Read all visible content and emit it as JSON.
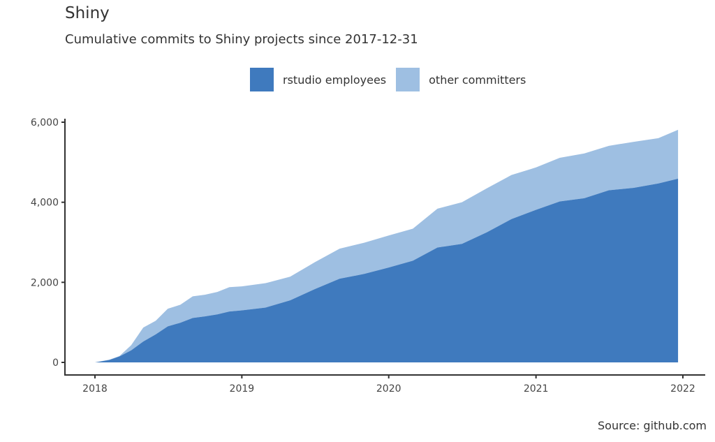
{
  "chart_data": {
    "type": "area",
    "stacked": true,
    "title": "Shiny",
    "subtitle": "Cumulative commits to Shiny projects since 2017-12-31",
    "caption": "Source: github.com",
    "xlabel": "",
    "ylabel": "",
    "xlim": [
      "2017-10-15",
      "2022-03-01"
    ],
    "ylim": [
      -250,
      6050
    ],
    "x_ticks": [
      "2018",
      "2019",
      "2020",
      "2021",
      "2022"
    ],
    "y_ticks": [
      "0",
      "2,000",
      "4,000",
      "6,000"
    ],
    "y_tick_values": [
      0,
      2000,
      4000,
      6000
    ],
    "legend_position": "top",
    "grid": false,
    "x": [
      "2018-01-01",
      "2018-02-06",
      "2018-03-03",
      "2018-04-01",
      "2018-05-01",
      "2018-06-01",
      "2018-07-01",
      "2018-08-01",
      "2018-09-01",
      "2018-10-01",
      "2018-11-01",
      "2018-12-01",
      "2019-01-01",
      "2019-03-01",
      "2019-05-01",
      "2019-07-01",
      "2019-09-01",
      "2019-11-01",
      "2020-01-01",
      "2020-03-01",
      "2020-05-01",
      "2020-07-01",
      "2020-09-01",
      "2020-11-01",
      "2021-01-01",
      "2021-03-01",
      "2021-05-01",
      "2021-07-01",
      "2021-09-01",
      "2021-11-01",
      "2021-12-20"
    ],
    "series": [
      {
        "name": "rstudio employees",
        "color": "#3f7abe",
        "values": [
          0,
          60,
          150,
          300,
          520,
          700,
          900,
          990,
          1110,
          1150,
          1200,
          1270,
          1300,
          1370,
          1550,
          1830,
          2090,
          2210,
          2370,
          2540,
          2870,
          2960,
          3250,
          3580,
          3810,
          4020,
          4100,
          4300,
          4360,
          4470,
          4590
        ]
      },
      {
        "name": "other committers",
        "color": "#9ebfe2",
        "values": [
          0,
          10,
          10,
          130,
          350,
          340,
          440,
          450,
          540,
          540,
          560,
          610,
          600,
          610,
          590,
          670,
          750,
          780,
          800,
          800,
          970,
          1040,
          1100,
          1100,
          1060,
          1090,
          1120,
          1110,
          1150,
          1130,
          1220
        ]
      }
    ]
  }
}
